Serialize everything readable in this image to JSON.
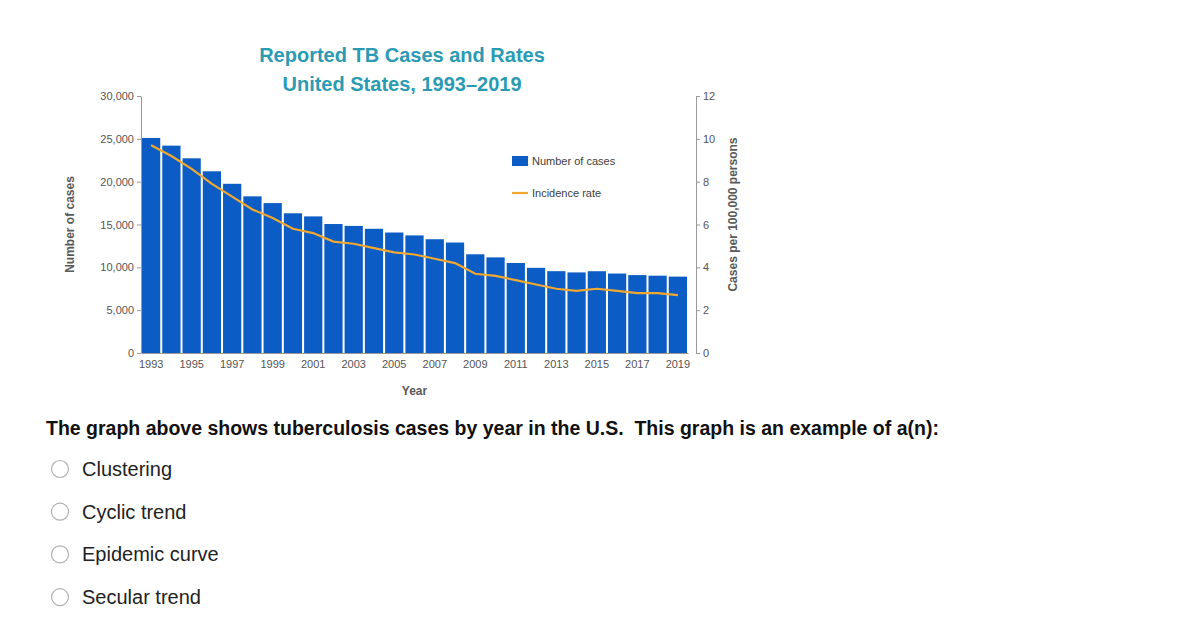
{
  "chart_data": {
    "type": "bar",
    "title": "Reported TB Cases and Rates\nUnited States, 1993–2019",
    "xlabel": "Year",
    "ylabel": "Number of cases",
    "y2label": "Cases per 100,000 persons",
    "categories": [
      "1993",
      null,
      "1995",
      null,
      "1997",
      null,
      "1999",
      null,
      "2001",
      null,
      "2003",
      null,
      "2005",
      null,
      "2007",
      null,
      "2009",
      null,
      "2011",
      null,
      "2013",
      null,
      "2015",
      null,
      "2017",
      null,
      "2019"
    ],
    "series": [
      {
        "name": "Number of cases",
        "type": "bar",
        "color": "#0b5cc4",
        "values": [
          25103,
          24206,
          22727,
          21210,
          19751,
          18287,
          17499,
          16308,
          15945,
          15055,
          14835,
          14499,
          14063,
          13727,
          13280,
          12895,
          11523,
          11161,
          10508,
          9940,
          9551,
          9406,
          9546,
          9272,
          9093,
          9025,
          8916
        ]
      },
      {
        "name": "Incidence rate",
        "type": "line",
        "axis": "y2",
        "color": "#f0a830",
        "values": [
          9.7,
          9.2,
          8.6,
          7.9,
          7.3,
          6.7,
          6.3,
          5.8,
          5.6,
          5.2,
          5.1,
          4.9,
          4.7,
          4.6,
          4.4,
          4.2,
          3.7,
          3.6,
          3.4,
          3.2,
          3.0,
          2.9,
          3.0,
          2.9,
          2.8,
          2.8,
          2.7
        ]
      }
    ],
    "ylim": [
      0,
      30000
    ],
    "yticks": [
      0,
      {
        "value": 5000,
        "label": "5,000"
      },
      {
        "value": 10000,
        "label": "10,000"
      },
      {
        "value": 15000,
        "label": "15,000"
      },
      {
        "value": 20000,
        "label": "20,000"
      },
      {
        "value": 25000,
        "label": "25,000"
      },
      {
        "value": 30000,
        "label": "30,000"
      }
    ],
    "y2lim": [
      0,
      12
    ],
    "y2ticks": [
      0,
      2,
      4,
      6,
      8,
      10,
      12
    ],
    "grid": false,
    "legend": "top-right"
  },
  "question": {
    "text": "The graph above shows tuberculosis cases by year in the U.S.  This graph is an example of a(n):",
    "options": [
      "Clustering",
      "Cyclic trend",
      "Epidemic curve",
      "Secular trend"
    ]
  }
}
